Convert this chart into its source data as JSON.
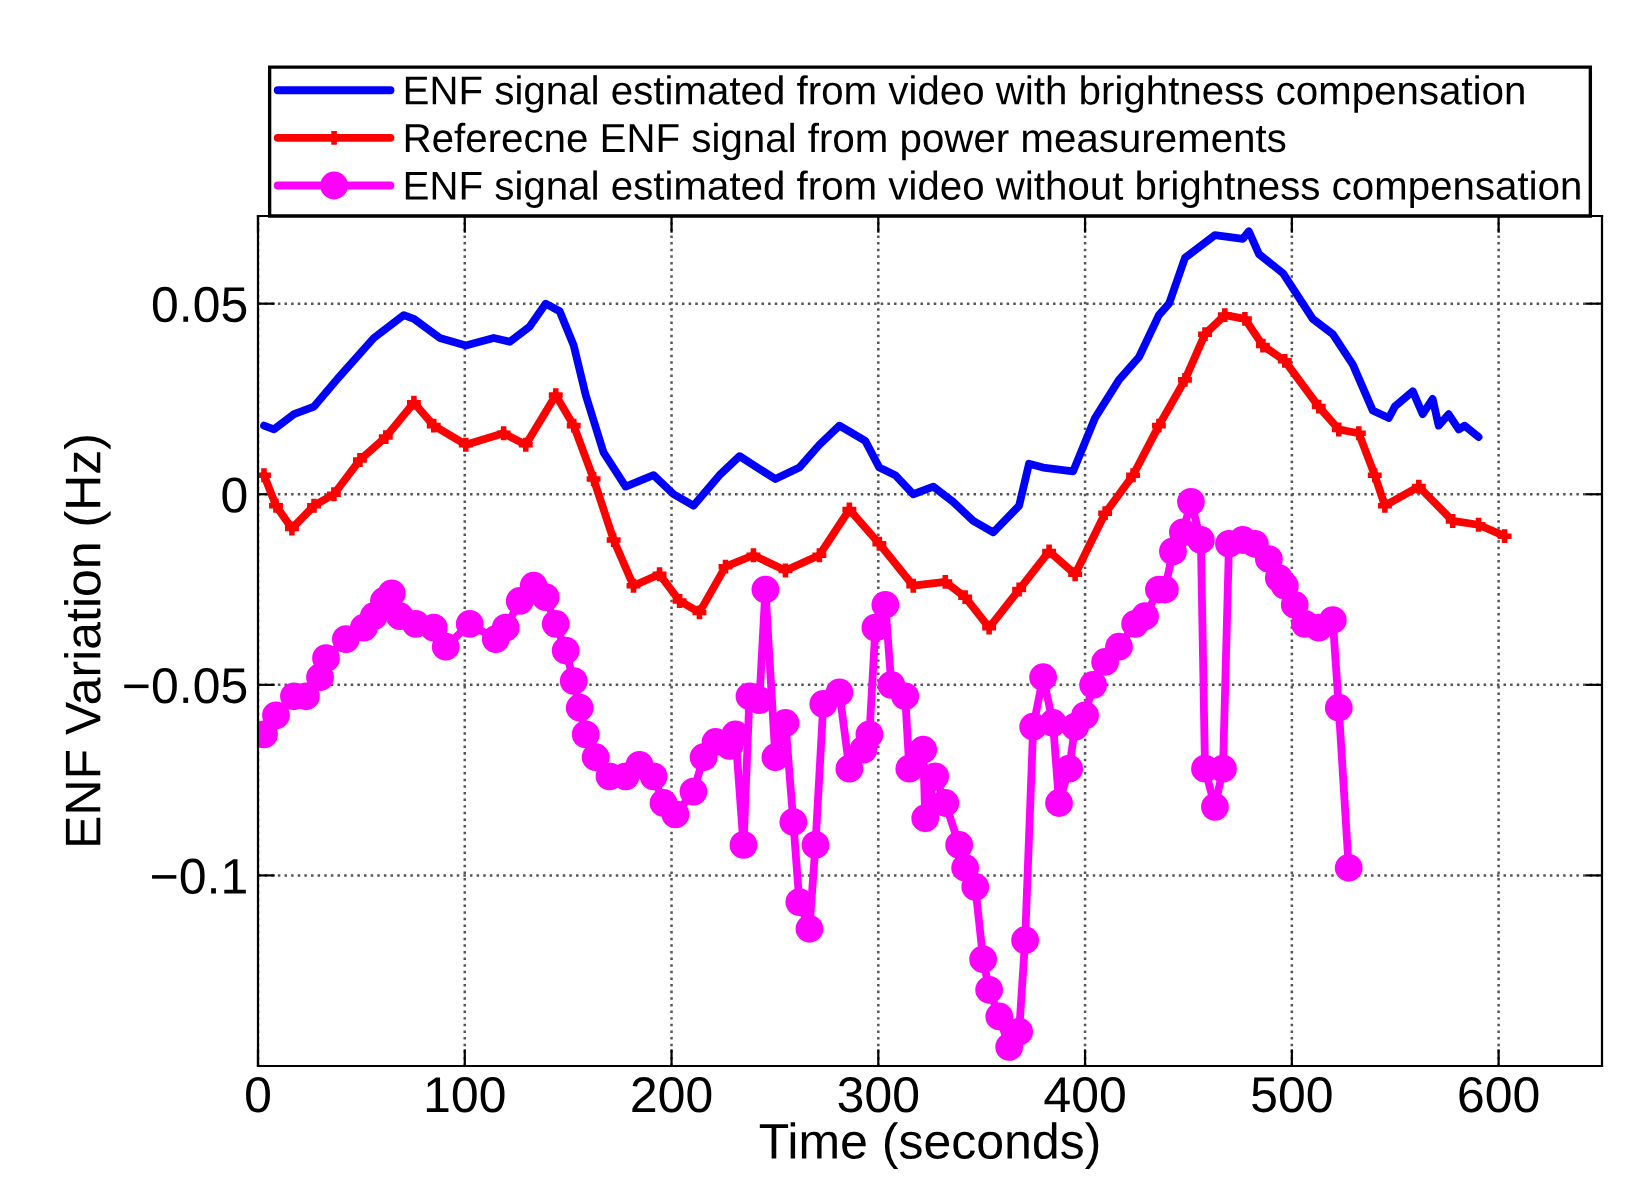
{
  "chart_data": {
    "type": "line",
    "xlabel": "Time (seconds)",
    "ylabel": "ENF Variation (Hz)",
    "xlim": [
      0,
      650
    ],
    "ylim": [
      -0.15,
      0.073
    ],
    "xticks": [
      0,
      100,
      200,
      300,
      400,
      500,
      600
    ],
    "yticks": [
      {
        "value": -0.1,
        "label": "−0.1"
      },
      {
        "value": -0.05,
        "label": "−0.05"
      },
      0,
      0.05
    ],
    "grid": true,
    "legend": "top",
    "line_style": "solid",
    "series": [
      {
        "name": "ENF signal estimated from video with brightness compensation",
        "color": "#0000ff",
        "marker": "none",
        "x": [
          2.9,
          7.7,
          17.4,
          27.1,
          39.6,
          56.0,
          70.5,
          75.4,
          87.9,
          100.5,
          114.0,
          121.7,
          131.4,
          139.1,
          145.9,
          152.7,
          158.5,
          167.1,
          177.8,
          191.3,
          201.0,
          210.6,
          223.2,
          232.9,
          244.4,
          250.2,
          261.8,
          271.5,
          281.2,
          293.7,
          300.5,
          308.2,
          316.9,
          326.6,
          336.2,
          345.9,
          355.6,
          368.1,
          372.9,
          379.7,
          394.2,
          404.8,
          416.4,
          426.1,
          435.7,
          440.6,
          448.3,
          462.8,
          476.3,
          479.2,
          484.1,
          495.7,
          510.1,
          519.8,
          529.5,
          539.1,
          546.9,
          549.8,
          558.5,
          563.3,
          568.1,
          571.0,
          575.8,
          580.7,
          583.6,
          590.3
        ],
        "values": [
          0.018,
          0.017,
          0.021,
          0.023,
          0.031,
          0.041,
          0.047,
          0.046,
          0.041,
          0.039,
          0.041,
          0.04,
          0.044,
          0.05,
          0.048,
          0.039,
          0.026,
          0.011,
          0.002,
          0.005,
          0.0,
          -0.003,
          0.005,
          0.01,
          0.006,
          0.004,
          0.007,
          0.013,
          0.018,
          0.014,
          0.007,
          0.005,
          0.0,
          0.002,
          -0.002,
          -0.007,
          -0.01,
          -0.003,
          0.008,
          0.007,
          0.006,
          0.02,
          0.03,
          0.036,
          0.047,
          0.05,
          0.062,
          0.068,
          0.067,
          0.069,
          0.063,
          0.058,
          0.046,
          0.042,
          0.034,
          0.022,
          0.02,
          0.023,
          0.027,
          0.021,
          0.025,
          0.018,
          0.021,
          0.017,
          0.018,
          0.015
        ]
      },
      {
        "name": "Referecne ENF signal from power measurements",
        "color": "#ff0000",
        "marker": "cross",
        "x": [
          2.9,
          8.7,
          16.4,
          27.1,
          36.7,
          49.3,
          61.8,
          75.4,
          85.0,
          100.5,
          118.8,
          129.5,
          144.0,
          152.7,
          162.3,
          172.0,
          181.6,
          194.2,
          203.9,
          213.5,
          226.1,
          239.6,
          255.1,
          271.5,
          286.0,
          300.5,
          316.9,
          332.4,
          342.0,
          353.6,
          368.1,
          382.6,
          395.2,
          409.7,
          423.2,
          435.7,
          448.3,
          458.0,
          467.6,
          477.3,
          486.0,
          496.6,
          513.0,
          522.7,
          532.4,
          540.1,
          545.0,
          561.4,
          577.8,
          590.3,
          602.9
        ],
        "values": [
          0.005,
          -0.003,
          -0.009,
          -0.003,
          0.0,
          0.009,
          0.015,
          0.024,
          0.018,
          0.013,
          0.016,
          0.013,
          0.026,
          0.018,
          0.004,
          -0.012,
          -0.024,
          -0.021,
          -0.028,
          -0.031,
          -0.019,
          -0.016,
          -0.02,
          -0.016,
          -0.004,
          -0.013,
          -0.024,
          -0.023,
          -0.027,
          -0.035,
          -0.025,
          -0.015,
          -0.021,
          -0.005,
          0.005,
          0.018,
          0.03,
          0.042,
          0.047,
          0.046,
          0.039,
          0.035,
          0.023,
          0.017,
          0.016,
          0.005,
          -0.003,
          0.002,
          -0.007,
          -0.008,
          -0.011
        ]
      },
      {
        "name": "ENF signal estimated from video without brightness compensation",
        "color": "#ff00ff",
        "marker": "circle",
        "x": [
          2.9,
          8.7,
          17.4,
          23.2,
          30.0,
          32.9,
          42.5,
          51.2,
          56.0,
          60.9,
          64.7,
          68.6,
          76.3,
          85.0,
          90.8,
          102.4,
          115.0,
          119.8,
          126.6,
          133.3,
          139.1,
          144.0,
          148.8,
          152.7,
          155.6,
          158.5,
          163.3,
          170.0,
          177.8,
          184.5,
          191.3,
          196.1,
          201.9,
          210.6,
          215.5,
          221.3,
          228.0,
          230.9,
          234.8,
          237.7,
          242.5,
          245.4,
          250.2,
          255.1,
          258.9,
          261.8,
          266.7,
          269.6,
          273.4,
          281.2,
          286.0,
          292.8,
          295.7,
          298.6,
          303.4,
          306.3,
          313.0,
          315.0,
          321.7,
          322.7,
          327.5,
          332.4,
          339.1,
          342.0,
          346.9,
          350.7,
          353.6,
          358.5,
          363.3,
          368.1,
          371.0,
          374.9,
          379.7,
          384.5,
          387.4,
          392.3,
          395.2,
          400.0,
          403.9,
          409.7,
          416.4,
          424.2,
          429.0,
          435.7,
          438.6,
          442.5,
          447.3,
          451.2,
          456.0,
          458.0,
          462.8,
          466.7,
          469.6,
          476.3,
          482.1,
          488.9,
          493.7,
          496.6,
          501.4,
          506.3,
          513.0,
          519.8,
          522.7,
          527.5
        ],
        "values": [
          -0.063,
          -0.058,
          -0.053,
          -0.053,
          -0.048,
          -0.043,
          -0.038,
          -0.035,
          -0.032,
          -0.028,
          -0.026,
          -0.032,
          -0.034,
          -0.035,
          -0.04,
          -0.034,
          -0.038,
          -0.035,
          -0.028,
          -0.024,
          -0.027,
          -0.034,
          -0.041,
          -0.049,
          -0.056,
          -0.063,
          -0.069,
          -0.074,
          -0.074,
          -0.071,
          -0.074,
          -0.081,
          -0.084,
          -0.078,
          -0.069,
          -0.065,
          -0.066,
          -0.063,
          -0.092,
          -0.053,
          -0.054,
          -0.025,
          -0.069,
          -0.06,
          -0.086,
          -0.107,
          -0.114,
          -0.092,
          -0.055,
          -0.052,
          -0.072,
          -0.067,
          -0.063,
          -0.035,
          -0.029,
          -0.05,
          -0.053,
          -0.072,
          -0.067,
          -0.085,
          -0.074,
          -0.081,
          -0.092,
          -0.098,
          -0.103,
          -0.122,
          -0.13,
          -0.137,
          -0.145,
          -0.141,
          -0.117,
          -0.061,
          -0.048,
          -0.06,
          -0.081,
          -0.072,
          -0.061,
          -0.058,
          -0.05,
          -0.044,
          -0.04,
          -0.034,
          -0.032,
          -0.025,
          -0.025,
          -0.015,
          -0.01,
          -0.002,
          -0.012,
          -0.072,
          -0.082,
          -0.072,
          -0.013,
          -0.012,
          -0.013,
          -0.017,
          -0.022,
          -0.024,
          -0.029,
          -0.034,
          -0.035,
          -0.033,
          -0.056,
          -0.098
        ]
      }
    ]
  }
}
